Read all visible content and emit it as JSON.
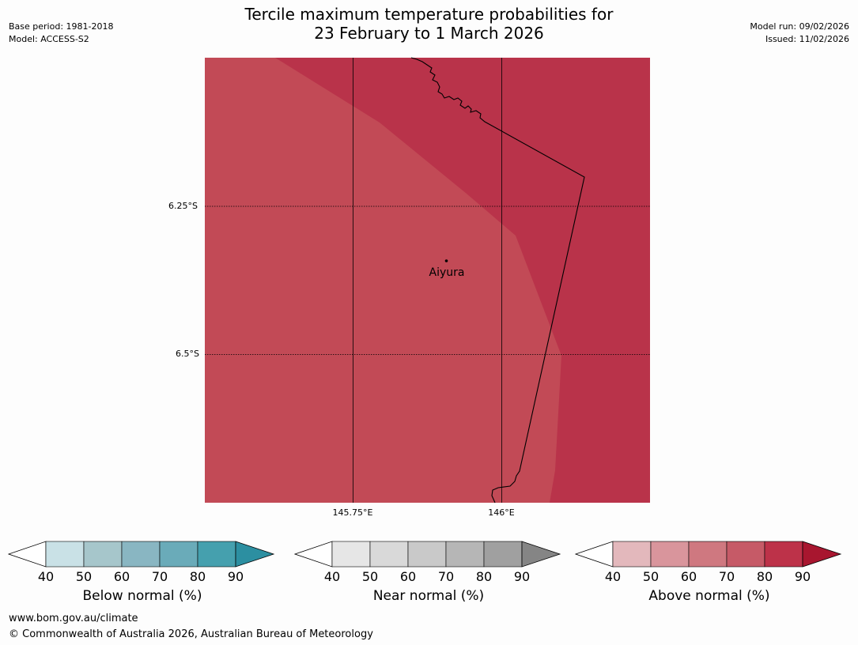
{
  "header": {
    "title_line1": "Tercile maximum temperature probabilities for",
    "title_line2": "23 February to 1 March 2026",
    "base_period": "Base period: 1981-2018",
    "model": "Model: ACCESS-S2",
    "model_run": "Model run: 09/02/2026",
    "issued": "Issued: 11/02/2026"
  },
  "map": {
    "lat_labels": [
      "6.25°S",
      "6.5°S"
    ],
    "lon_labels": [
      "145.75°E",
      "146°E"
    ],
    "place": "Aiyura",
    "fill_colors": {
      "above_70_80": "#c24a56",
      "above_80_90": "#b9334a"
    }
  },
  "legends": [
    {
      "key": "below",
      "title": "Below normal (%)",
      "ticks": [
        "40",
        "50",
        "60",
        "70",
        "80",
        "90"
      ],
      "colors": [
        "#c9e1e6",
        "#a6c6cb",
        "#89b6c2",
        "#6aabb9",
        "#45a0ae",
        "#2c8fa1"
      ]
    },
    {
      "key": "near",
      "title": "Near normal (%)",
      "ticks": [
        "40",
        "50",
        "60",
        "70",
        "80",
        "90"
      ],
      "colors": [
        "#e6e6e6",
        "#d9d9d9",
        "#c9c9c9",
        "#b6b6b6",
        "#a0a0a0",
        "#858585"
      ]
    },
    {
      "key": "above",
      "title": "Above normal (%)",
      "ticks": [
        "40",
        "50",
        "60",
        "70",
        "80",
        "90"
      ],
      "colors": [
        "#e3b8bc",
        "#d9959c",
        "#cf7880",
        "#c65a67",
        "#bd3249",
        "#a8162f"
      ]
    }
  ],
  "footer": {
    "url": "www.bom.gov.au/climate",
    "copyright": "© Commonwealth of Australia 2026, Australian Bureau of Meteorology"
  }
}
